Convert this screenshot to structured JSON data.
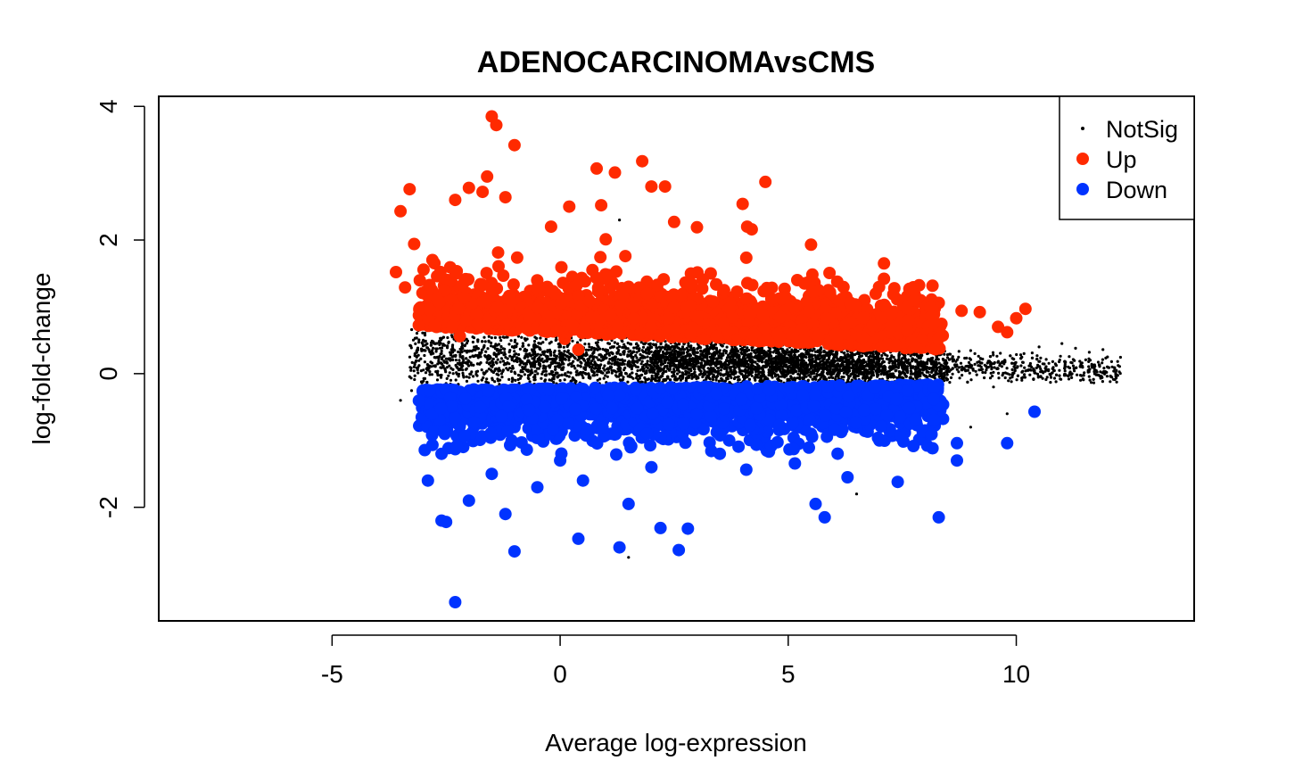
{
  "chart_data": {
    "type": "scatter",
    "title": "ADENOCARCINOMAvsCMS",
    "xlabel": "Average log-expression",
    "ylabel": "log-fold-change",
    "xlim": [
      -8.8,
      13.9
    ],
    "ylim": [
      -3.7,
      4.15
    ],
    "x_ticks": [
      -5,
      0,
      5,
      10
    ],
    "x_tick_labels": [
      "-5",
      "0",
      "5",
      "10"
    ],
    "y_ticks": [
      -2,
      0,
      2,
      4
    ],
    "y_tick_labels": [
      "-2",
      "0",
      "2",
      "4"
    ],
    "grid": false,
    "legend_position": "top-right",
    "legend": [
      {
        "label": "NotSig",
        "color": "#000000",
        "marker": "small-dot"
      },
      {
        "label": "Up",
        "color": "#ff2a00",
        "marker": "large-dot"
      },
      {
        "label": "Down",
        "color": "#0033ff",
        "marker": "large-dot"
      }
    ],
    "series": [
      {
        "name": "NotSig",
        "color": "#000000",
        "points": [
          [
            -3.0,
            0.5
          ],
          [
            -3.5,
            -0.4
          ],
          [
            -3.2,
            0.1
          ],
          [
            -2.8,
            -0.6
          ],
          [
            -2.6,
            0.3
          ],
          [
            0.0,
            0.2
          ],
          [
            2.0,
            -0.1
          ],
          [
            5.0,
            0.0
          ],
          [
            7.5,
            0.3
          ],
          [
            8.5,
            0.1
          ],
          [
            9.5,
            -0.2
          ],
          [
            10.5,
            0.4
          ],
          [
            11.0,
            0.45
          ],
          [
            11.3,
            0.38
          ],
          [
            11.6,
            0.32
          ],
          [
            11.9,
            0.36
          ],
          [
            12.2,
            -0.02
          ],
          [
            12.0,
            0.25
          ],
          [
            10.8,
            0.18
          ],
          [
            9.8,
            -0.6
          ],
          [
            9.0,
            -0.8
          ],
          [
            1.5,
            -2.75
          ],
          [
            -1.0,
            -2.6
          ],
          [
            6.5,
            -1.8
          ],
          [
            1.3,
            2.3
          ]
        ]
      },
      {
        "name": "Up",
        "color": "#ff2a00",
        "points": [
          [
            -1.5,
            3.85
          ],
          [
            -1.4,
            3.72
          ],
          [
            -1.0,
            3.42
          ],
          [
            0.8,
            3.07
          ],
          [
            1.2,
            3.01
          ],
          [
            1.8,
            3.18
          ],
          [
            -3.3,
            2.76
          ],
          [
            -1.6,
            2.95
          ],
          [
            -3.5,
            2.43
          ],
          [
            -2.0,
            2.78
          ],
          [
            -1.7,
            2.72
          ],
          [
            -1.2,
            2.64
          ],
          [
            -2.3,
            2.6
          ],
          [
            2.0,
            2.8
          ],
          [
            2.3,
            2.8
          ],
          [
            4.0,
            2.54
          ],
          [
            4.5,
            2.87
          ],
          [
            0.2,
            2.5
          ],
          [
            0.9,
            2.52
          ],
          [
            4.1,
            2.2
          ],
          [
            4.2,
            2.16
          ],
          [
            2.5,
            2.27
          ],
          [
            3.0,
            2.19
          ],
          [
            -3.6,
            1.52
          ],
          [
            -3.2,
            1.94
          ],
          [
            -2.8,
            1.7
          ],
          [
            -0.2,
            2.2
          ],
          [
            1.0,
            2.01
          ],
          [
            5.5,
            1.93
          ],
          [
            7.1,
            1.65
          ],
          [
            7.1,
            1.42
          ],
          [
            7.9,
            1.1
          ],
          [
            8.3,
            1.06
          ],
          [
            8.8,
            0.94
          ],
          [
            9.2,
            0.92
          ],
          [
            10.2,
            0.97
          ],
          [
            10.0,
            0.83
          ],
          [
            9.6,
            0.7
          ],
          [
            9.8,
            0.62
          ],
          [
            -2.2,
            0.56
          ],
          [
            0.1,
            0.52
          ],
          [
            0.4,
            0.36
          ],
          [
            -3.4,
            1.29
          ],
          [
            3.3,
            1.5
          ],
          [
            3.8,
            1.15
          ],
          [
            4.5,
            0.95
          ],
          [
            5.0,
            0.85
          ],
          [
            5.5,
            0.8
          ],
          [
            6.0,
            0.75
          ],
          [
            6.5,
            0.7
          ],
          [
            7.0,
            0.68
          ],
          [
            7.6,
            0.62
          ],
          [
            8.2,
            0.56
          ],
          [
            2.7,
            1.2
          ],
          [
            1.5,
            1.3
          ],
          [
            0.5,
            1.0
          ],
          [
            -0.5,
            1.1
          ],
          [
            -1.5,
            1.2
          ],
          [
            -2.5,
            1.4
          ],
          [
            3.0,
            0.9
          ],
          [
            4.0,
            0.7
          ],
          [
            5.2,
            1.4
          ],
          [
            6.3,
            1.1
          ]
        ]
      },
      {
        "name": "Down",
        "color": "#0033ff",
        "points": [
          [
            -2.3,
            -3.42
          ],
          [
            -1.0,
            -2.66
          ],
          [
            1.3,
            -2.6
          ],
          [
            2.6,
            -2.64
          ],
          [
            2.8,
            -2.32
          ],
          [
            0.4,
            -2.47
          ],
          [
            2.2,
            -2.31
          ],
          [
            -2.5,
            -2.22
          ],
          [
            -2.6,
            -2.2
          ],
          [
            8.3,
            -2.15
          ],
          [
            5.8,
            -2.15
          ],
          [
            5.6,
            -1.95
          ],
          [
            10.4,
            -0.57
          ],
          [
            9.8,
            -1.04
          ],
          [
            8.7,
            -1.04
          ],
          [
            8.7,
            -1.3
          ],
          [
            7.4,
            -1.62
          ],
          [
            6.3,
            -1.55
          ],
          [
            7.0,
            -1.0
          ],
          [
            8.0,
            -0.85
          ],
          [
            6.8,
            -0.6
          ],
          [
            7.5,
            -0.7
          ],
          [
            -2.8,
            -0.75
          ],
          [
            -2.6,
            -1.2
          ],
          [
            -1.5,
            -1.5
          ],
          [
            0.5,
            -1.6
          ],
          [
            2.0,
            -1.4
          ],
          [
            3.5,
            -1.2
          ],
          [
            4.5,
            -1.1
          ],
          [
            5.5,
            -0.9
          ],
          [
            6.5,
            -0.7
          ],
          [
            -2.0,
            -1.9
          ],
          [
            -1.2,
            -2.1
          ],
          [
            1.5,
            -1.95
          ],
          [
            0.0,
            -1.3
          ],
          [
            3.0,
            -0.8
          ],
          [
            4.0,
            -0.6
          ],
          [
            1.0,
            -0.9
          ],
          [
            -1.0,
            -0.8
          ],
          [
            5.0,
            -0.5
          ],
          [
            6.0,
            -0.5
          ],
          [
            -2.9,
            -1.6
          ],
          [
            -0.5,
            -1.7
          ]
        ]
      }
    ]
  }
}
